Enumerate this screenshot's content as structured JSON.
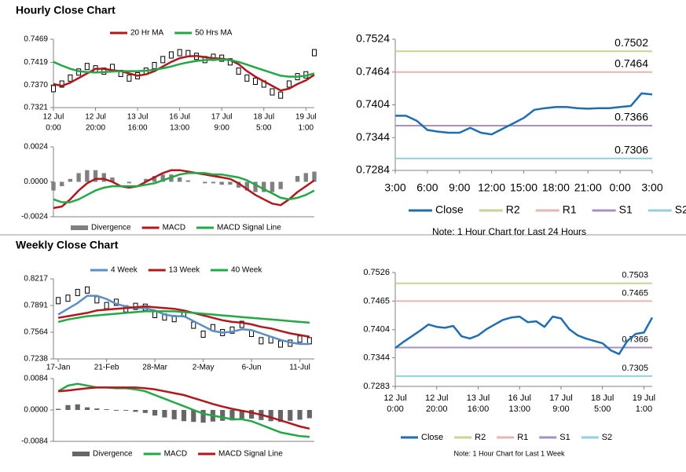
{
  "headings": [
    "Hourly Close Chart",
    "Weekly Close Chart"
  ],
  "chart_data": [
    {
      "type": "line",
      "legend": "top",
      "x": [
        0,
        1,
        2,
        3,
        4,
        5,
        6,
        7,
        8,
        9,
        10,
        11,
        12,
        13,
        14,
        15,
        16,
        17,
        18,
        19,
        20,
        21,
        22,
        23,
        24,
        25,
        26,
        27,
        28,
        29,
        30,
        31
      ],
      "xlim": [
        0,
        31
      ],
      "xticks": [
        {
          "value": 0,
          "label": [
            "12 Jul",
            "0:00"
          ]
        },
        {
          "value": 5,
          "label": [
            "12 Jul",
            "20:00"
          ]
        },
        {
          "value": 10,
          "label": [
            "13 Jul",
            "16:00"
          ]
        },
        {
          "value": 15,
          "label": [
            "16 Jul",
            "13:00"
          ]
        },
        {
          "value": 20,
          "label": [
            "17 Jul",
            "9:00"
          ]
        },
        {
          "value": 25,
          "label": [
            "18 Jul",
            "5:00"
          ]
        },
        {
          "value": 30,
          "label": [
            "19 Jul",
            "1:00"
          ]
        }
      ],
      "ylim": [
        0.7321,
        0.7469
      ],
      "yticks": [
        0.7321,
        {
          "value": 0.737,
          "label": "0.7370"
        },
        0.7419,
        0.7469
      ],
      "values": [
        0.7362,
        0.7372,
        0.7385,
        0.7398,
        0.741,
        0.7405,
        0.74,
        0.7408,
        0.7395,
        0.7385,
        0.739,
        0.74,
        0.7412,
        0.7425,
        0.7435,
        0.744,
        0.7438,
        0.7432,
        0.7425,
        0.743,
        0.7428,
        0.742,
        0.74,
        0.7385,
        0.7378,
        0.7372,
        0.7355,
        0.7348,
        0.7372,
        0.7388,
        0.7392,
        0.744
      ],
      "series": [
        {
          "name": "20 Hr MA",
          "color": "#b0181e",
          "values": [
            0.7372,
            0.7368,
            0.7375,
            0.7385,
            0.7395,
            0.7405,
            0.7405,
            0.7402,
            0.74,
            0.7395,
            0.739,
            0.7393,
            0.74,
            0.741,
            0.742,
            0.7428,
            0.7432,
            0.7433,
            0.743,
            0.7428,
            0.7427,
            0.7424,
            0.7415,
            0.74,
            0.7388,
            0.7378,
            0.7368,
            0.7358,
            0.7362,
            0.7372,
            0.738,
            0.7392
          ]
        },
        {
          "name": "50 Hrs MA",
          "color": "#22a845",
          "values": [
            0.742,
            0.7412,
            0.7405,
            0.74,
            0.7398,
            0.7397,
            0.7398,
            0.7399,
            0.74,
            0.74,
            0.74,
            0.7401,
            0.7403,
            0.7406,
            0.741,
            0.7415,
            0.7419,
            0.7422,
            0.7424,
            0.7425,
            0.7425,
            0.7424,
            0.742,
            0.7414,
            0.7408,
            0.7402,
            0.7396,
            0.739,
            0.7388,
            0.7388,
            0.739,
            0.7395
          ]
        }
      ]
    },
    {
      "type": "combo",
      "legend": "bottom",
      "x": [
        0,
        1,
        2,
        3,
        4,
        5,
        6,
        7,
        8,
        9,
        10,
        11,
        12,
        13,
        14,
        15,
        16,
        17,
        18,
        19,
        20,
        21,
        22,
        23,
        24,
        25,
        26,
        27,
        28,
        29,
        30,
        31
      ],
      "xlim": [
        0,
        31
      ],
      "ylim": [
        -0.0024,
        0.0024
      ],
      "yticks": [
        -0.0024,
        {
          "value": 0,
          "label": "0.0000"
        },
        0.0024
      ],
      "series": [
        {
          "name": "Divergence",
          "kind": "bar",
          "color": "#808080",
          "values": [
            -0.0006,
            -0.0003,
            0.0002,
            0.0006,
            0.0008,
            0.0008,
            0.0006,
            0.0003,
            0,
            -0.0001,
            0,
            0.0002,
            0.0004,
            0.0005,
            0.0005,
            0.0003,
            0.0001,
            0,
            -0.0001,
            -0.0001,
            -0.0002,
            -0.0002,
            -0.0004,
            -0.0006,
            -0.0007,
            -0.0007,
            -0.0007,
            -0.0005,
            0,
            0.0004,
            0.0006,
            0.0007
          ]
        },
        {
          "name": "MACD",
          "color": "#b0181e",
          "values": [
            -0.0018,
            -0.0017,
            -0.0012,
            -0.0006,
            -0.0001,
            0.0002,
            0.0002,
            0,
            -0.0003,
            -0.0004,
            -0.0003,
            0,
            0.0003,
            0.0006,
            0.0008,
            0.0008,
            0.0007,
            0.0006,
            0.0005,
            0.0004,
            0.0003,
            0.0002,
            -0.0001,
            -0.0005,
            -0.0009,
            -0.0012,
            -0.0015,
            -0.0016,
            -0.0012,
            -0.0007,
            -0.0003,
            0.0001
          ]
        },
        {
          "name": "MACD Signal Line",
          "color": "#22a845",
          "values": [
            -0.0012,
            -0.0014,
            -0.0014,
            -0.0012,
            -0.0009,
            -0.0006,
            -0.0004,
            -0.0003,
            -0.0003,
            -0.0003,
            -0.0003,
            -0.0002,
            -0.0001,
            0.0001,
            0.0003,
            0.0005,
            0.0006,
            0.0006,
            0.0006,
            0.0005,
            0.0005,
            0.0004,
            0.0003,
            0.0001,
            -0.0002,
            -0.0005,
            -0.0008,
            -0.0011,
            -0.0012,
            -0.0011,
            -0.0009,
            -0.0006
          ]
        }
      ]
    },
    {
      "type": "line",
      "legend": "bottom",
      "note": "Note: 1 Hour Chart for Last 24 Hours",
      "x": [
        0,
        1,
        2,
        3,
        4,
        5,
        6,
        7,
        8,
        9,
        10,
        11,
        12,
        13,
        14,
        15,
        16,
        17,
        18,
        19,
        20,
        21,
        22,
        23,
        24
      ],
      "xlim": [
        0,
        24
      ],
      "xticks": [
        {
          "value": 0,
          "label": "3:00"
        },
        {
          "value": 3,
          "label": "6:00"
        },
        {
          "value": 6,
          "label": "9:00"
        },
        {
          "value": 9,
          "label": "12:00"
        },
        {
          "value": 12,
          "label": "15:00"
        },
        {
          "value": 15,
          "label": "18:00"
        },
        {
          "value": 18,
          "label": "21:00"
        },
        {
          "value": 21,
          "label": "0:00"
        },
        {
          "value": 24,
          "label": "3:00"
        }
      ],
      "ylim": [
        0.7284,
        0.7524
      ],
      "yticks": [
        0.7284,
        0.7344,
        0.7404,
        0.7464,
        0.7524
      ],
      "series": [
        {
          "name": "Close",
          "color": "#1f6db3",
          "values": [
            0.7384,
            0.7384,
            0.7375,
            0.7358,
            0.7355,
            0.7353,
            0.7353,
            0.7362,
            0.7353,
            0.735,
            0.736,
            0.737,
            0.738,
            0.7395,
            0.7398,
            0.74,
            0.74,
            0.7398,
            0.7397,
            0.7398,
            0.7398,
            0.74,
            0.7402,
            0.7425,
            0.7423
          ]
        }
      ],
      "levels": [
        {
          "name": "R2",
          "value": 0.7502,
          "color": "#c6d58f"
        },
        {
          "name": "R1",
          "value": 0.7464,
          "color": "#e9b4b4"
        },
        {
          "name": "S1",
          "value": 0.7366,
          "color": "#a690c6"
        },
        {
          "name": "S2",
          "value": 0.7306,
          "color": "#8fd2de"
        }
      ]
    },
    {
      "type": "line",
      "legend": "top",
      "x": [
        0,
        1,
        2,
        3,
        4,
        5,
        6,
        7,
        8,
        9,
        10,
        11,
        12,
        13,
        14,
        15,
        16,
        17,
        18,
        19,
        20,
        21,
        22,
        23,
        24,
        25,
        26
      ],
      "xlim": [
        -0.5,
        26.5
      ],
      "xticks": [
        {
          "value": 0,
          "label": "17-Jan"
        },
        {
          "value": 5,
          "label": "21-Feb"
        },
        {
          "value": 10,
          "label": "28-Mar"
        },
        {
          "value": 15,
          "label": "2-May"
        },
        {
          "value": 20,
          "label": "6-Jun"
        },
        {
          "value": 25,
          "label": "11-Jul"
        }
      ],
      "ylim": [
        0.7238,
        0.8217
      ],
      "yticks": [
        0.7238,
        0.7564,
        0.7891,
        0.8217
      ],
      "values": [
        0.795,
        0.798,
        0.805,
        0.808,
        0.796,
        0.789,
        0.793,
        0.785,
        0.788,
        0.787,
        0.778,
        0.775,
        0.773,
        0.779,
        0.765,
        0.754,
        0.762,
        0.756,
        0.759,
        0.766,
        0.755,
        0.746,
        0.747,
        0.742,
        0.743,
        0.748,
        0.746
      ],
      "series": [
        {
          "name": "4 Week",
          "color": "#5b8ec6",
          "values": [
            0.778,
            0.785,
            0.792,
            0.801,
            0.801,
            0.797,
            0.791,
            0.788,
            0.786,
            0.786,
            0.783,
            0.778,
            0.776,
            0.776,
            0.77,
            0.764,
            0.758,
            0.756,
            0.757,
            0.76,
            0.759,
            0.755,
            0.751,
            0.747,
            0.744,
            0.742,
            0.742
          ]
        },
        {
          "name": "13 Week",
          "color": "#b0181e",
          "values": [
            0.774,
            0.776,
            0.778,
            0.78,
            0.783,
            0.784,
            0.785,
            0.786,
            0.787,
            0.788,
            0.787,
            0.786,
            0.785,
            0.783,
            0.78,
            0.777,
            0.774,
            0.771,
            0.769,
            0.768,
            0.766,
            0.763,
            0.761,
            0.758,
            0.755,
            0.753,
            0.751
          ]
        },
        {
          "name": "40 Week",
          "color": "#22a845",
          "values": [
            0.769,
            0.772,
            0.774,
            0.776,
            0.777,
            0.778,
            0.779,
            0.78,
            0.781,
            0.782,
            0.782,
            0.782,
            0.782,
            0.781,
            0.78,
            0.779,
            0.778,
            0.777,
            0.776,
            0.775,
            0.774,
            0.773,
            0.772,
            0.771,
            0.77,
            0.769,
            0.768
          ]
        }
      ]
    },
    {
      "type": "combo",
      "legend": "bottom",
      "x": [
        0,
        1,
        2,
        3,
        4,
        5,
        6,
        7,
        8,
        9,
        10,
        11,
        12,
        13,
        14,
        15,
        16,
        17,
        18,
        19,
        20,
        21,
        22,
        23,
        24,
        25,
        26
      ],
      "xlim": [
        -0.5,
        26.5
      ],
      "ylim": [
        -0.0084,
        0.0084
      ],
      "yticks": [
        -0.0084,
        {
          "value": 0,
          "label": "0.0000"
        },
        0.0084
      ],
      "series": [
        {
          "name": "Divergence",
          "kind": "bar",
          "color": "#666666",
          "values": [
            0.0003,
            0.0013,
            0.0015,
            0.0007,
            0.0004,
            0.0002,
            -0.0002,
            -0.0002,
            -0.0005,
            -0.0008,
            -0.0015,
            -0.002,
            -0.0025,
            -0.003,
            -0.0032,
            -0.0034,
            -0.0031,
            -0.0029,
            -0.0028,
            -0.0023,
            -0.0023,
            -0.0027,
            -0.003,
            -0.0032,
            -0.0029,
            -0.0026,
            -0.0022
          ]
        },
        {
          "name": "MACD",
          "color": "#22a845",
          "values": [
            0.005,
            0.0065,
            0.007,
            0.0065,
            0.006,
            0.006,
            0.0058,
            0.0058,
            0.0055,
            0.005,
            0.004,
            0.003,
            0.002,
            0.001,
            0,
            -0.001,
            -0.0015,
            -0.002,
            -0.0025,
            -0.0025,
            -0.003,
            -0.004,
            -0.005,
            -0.006,
            -0.0065,
            -0.007,
            -0.0072
          ]
        },
        {
          "name": "MACD Signal Line",
          "color": "#b0181e",
          "values": [
            0.005,
            0.0052,
            0.0055,
            0.0058,
            0.006,
            0.006,
            0.006,
            0.006,
            0.006,
            0.0058,
            0.0055,
            0.005,
            0.0045,
            0.004,
            0.0032,
            0.0024,
            0.0016,
            0.0009,
            0.0003,
            -0.0002,
            -0.0007,
            -0.0013,
            -0.002,
            -0.0028,
            -0.0036,
            -0.0044,
            -0.005
          ]
        }
      ]
    },
    {
      "type": "line",
      "legend": "bottom",
      "note": "Note: 1 Hour Chart for Last 1 Week",
      "x": [
        0,
        1,
        2,
        3,
        4,
        5,
        6,
        7,
        8,
        9,
        10,
        11,
        12,
        13,
        14,
        15,
        16,
        17,
        18,
        19,
        20,
        21,
        22,
        23,
        24,
        25,
        26,
        27,
        28,
        29,
        30,
        31
      ],
      "xlim": [
        0,
        31
      ],
      "xticks": [
        {
          "value": 0,
          "label": [
            "12 Jul",
            "0:00"
          ]
        },
        {
          "value": 5,
          "label": [
            "12 Jul",
            "20:00"
          ]
        },
        {
          "value": 10,
          "label": [
            "13 Jul",
            "16:00"
          ]
        },
        {
          "value": 15,
          "label": [
            "16 Jul",
            "13:00"
          ]
        },
        {
          "value": 20,
          "label": [
            "17 Jul",
            "9:00"
          ]
        },
        {
          "value": 25,
          "label": [
            "18 Jul",
            "5:00"
          ]
        },
        {
          "value": 30,
          "label": [
            "19 Jul",
            "1:00"
          ]
        }
      ],
      "ylim": [
        0.7283,
        0.7526
      ],
      "yticks": [
        0.7283,
        0.7344,
        0.7404,
        0.7465,
        0.7526
      ],
      "series": [
        {
          "name": "Close",
          "color": "#1f6db3",
          "values": [
            0.7365,
            0.7378,
            0.739,
            0.7402,
            0.7415,
            0.741,
            0.7408,
            0.7412,
            0.739,
            0.7385,
            0.7392,
            0.7405,
            0.7415,
            0.7425,
            0.743,
            0.7432,
            0.742,
            0.7422,
            0.741,
            0.7432,
            0.7428,
            0.7405,
            0.7392,
            0.7385,
            0.738,
            0.7375,
            0.736,
            0.7352,
            0.738,
            0.7395,
            0.7398,
            0.743
          ]
        }
      ],
      "levels": [
        {
          "name": "R2",
          "value": 0.7503,
          "color": "#c6d58f"
        },
        {
          "name": "R1",
          "value": 0.7465,
          "color": "#e9b4b4"
        },
        {
          "name": "S1",
          "value": 0.7366,
          "color": "#a690c6"
        },
        {
          "name": "S2",
          "value": 0.7305,
          "color": "#8fd2de"
        }
      ]
    }
  ]
}
